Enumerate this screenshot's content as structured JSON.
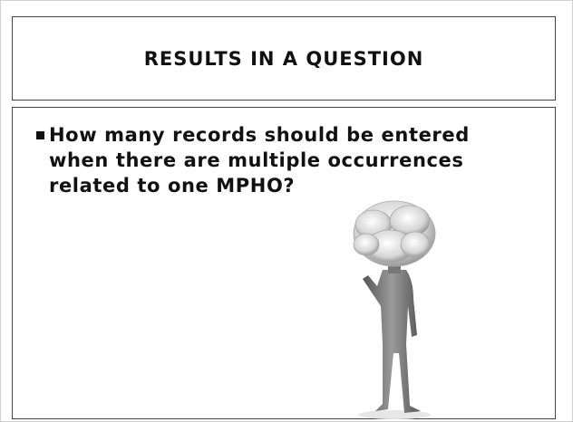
{
  "slide": {
    "title": "RESULTS IN A QUESTION",
    "bullets": [
      "How many records should be entered when there are multiple occurrences related to one MPHO?"
    ]
  }
}
